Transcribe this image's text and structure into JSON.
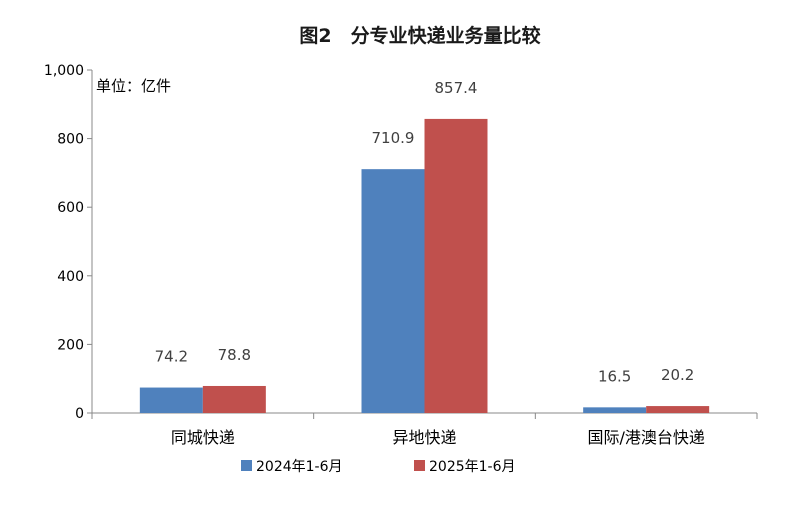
{
  "chart_data": {
    "type": "bar",
    "title": "图2　分专业快递业务量比较",
    "unit_label": "单位：亿件",
    "categories": [
      "同城快递",
      "异地快递",
      "国际/港澳台快递"
    ],
    "series": [
      {
        "name": "2024年1-6月",
        "values": [
          74.2,
          710.9,
          16.5
        ],
        "color": "#4f81bd"
      },
      {
        "name": "2025年1-6月",
        "values": [
          78.8,
          857.4,
          20.2
        ],
        "color": "#c0504d"
      }
    ],
    "data_labels": [
      [
        "74.2",
        "710.9",
        "16.5"
      ],
      [
        "78.8",
        "857.4",
        "20.2"
      ]
    ],
    "yticks": [
      0,
      200,
      400,
      600,
      800,
      1000
    ],
    "ytick_labels": [
      "0",
      "200",
      "400",
      "600",
      "800",
      "1,000"
    ],
    "ylim": [
      0,
      1000
    ],
    "xlabel": "",
    "ylabel": "",
    "grid": false,
    "legend_position": "bottom"
  }
}
